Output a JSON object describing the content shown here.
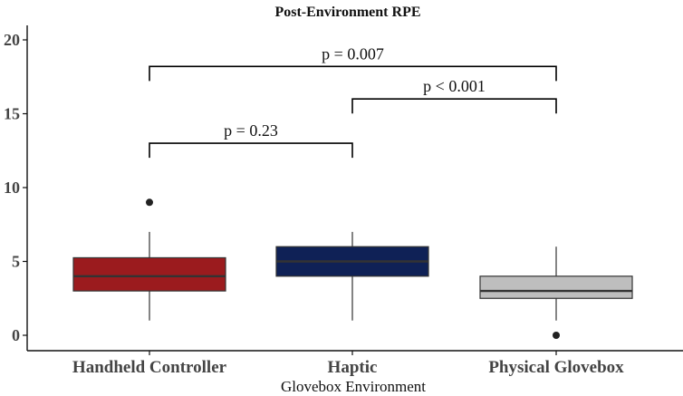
{
  "chart_data": {
    "type": "box",
    "title": "Post-Environment RPE",
    "xlabel": "Glovebox Environment",
    "ylabel": "",
    "ylim": [
      0,
      21
    ],
    "y_ticks": [
      0,
      5,
      10,
      15,
      20
    ],
    "categories": [
      "Handheld Controller",
      "Haptic",
      "Physical Glovebox"
    ],
    "boxes": [
      {
        "category": "Handheld Controller",
        "min": 1,
        "q1": 3,
        "median": 4,
        "q3": 5.25,
        "max": 7,
        "outliers": [
          9
        ],
        "color": "#9B1B1E"
      },
      {
        "category": "Haptic",
        "min": 1,
        "q1": 4,
        "median": 5,
        "q3": 6,
        "max": 7,
        "outliers": [],
        "color": "#0F2156"
      },
      {
        "category": "Physical Glovebox",
        "min": 1,
        "q1": 2.5,
        "median": 3,
        "q3": 4,
        "max": 6,
        "outliers": [
          0
        ],
        "color": "#BEBEBE"
      }
    ],
    "comparisons": [
      {
        "from": 0,
        "to": 1,
        "y": 13,
        "label": "p = 0.23"
      },
      {
        "from": 1,
        "to": 2,
        "y": 16,
        "label": "p < 0.001"
      },
      {
        "from": 0,
        "to": 2,
        "y": 18.2,
        "label": "p = 0.007"
      }
    ],
    "grid": false,
    "legend": "none"
  }
}
